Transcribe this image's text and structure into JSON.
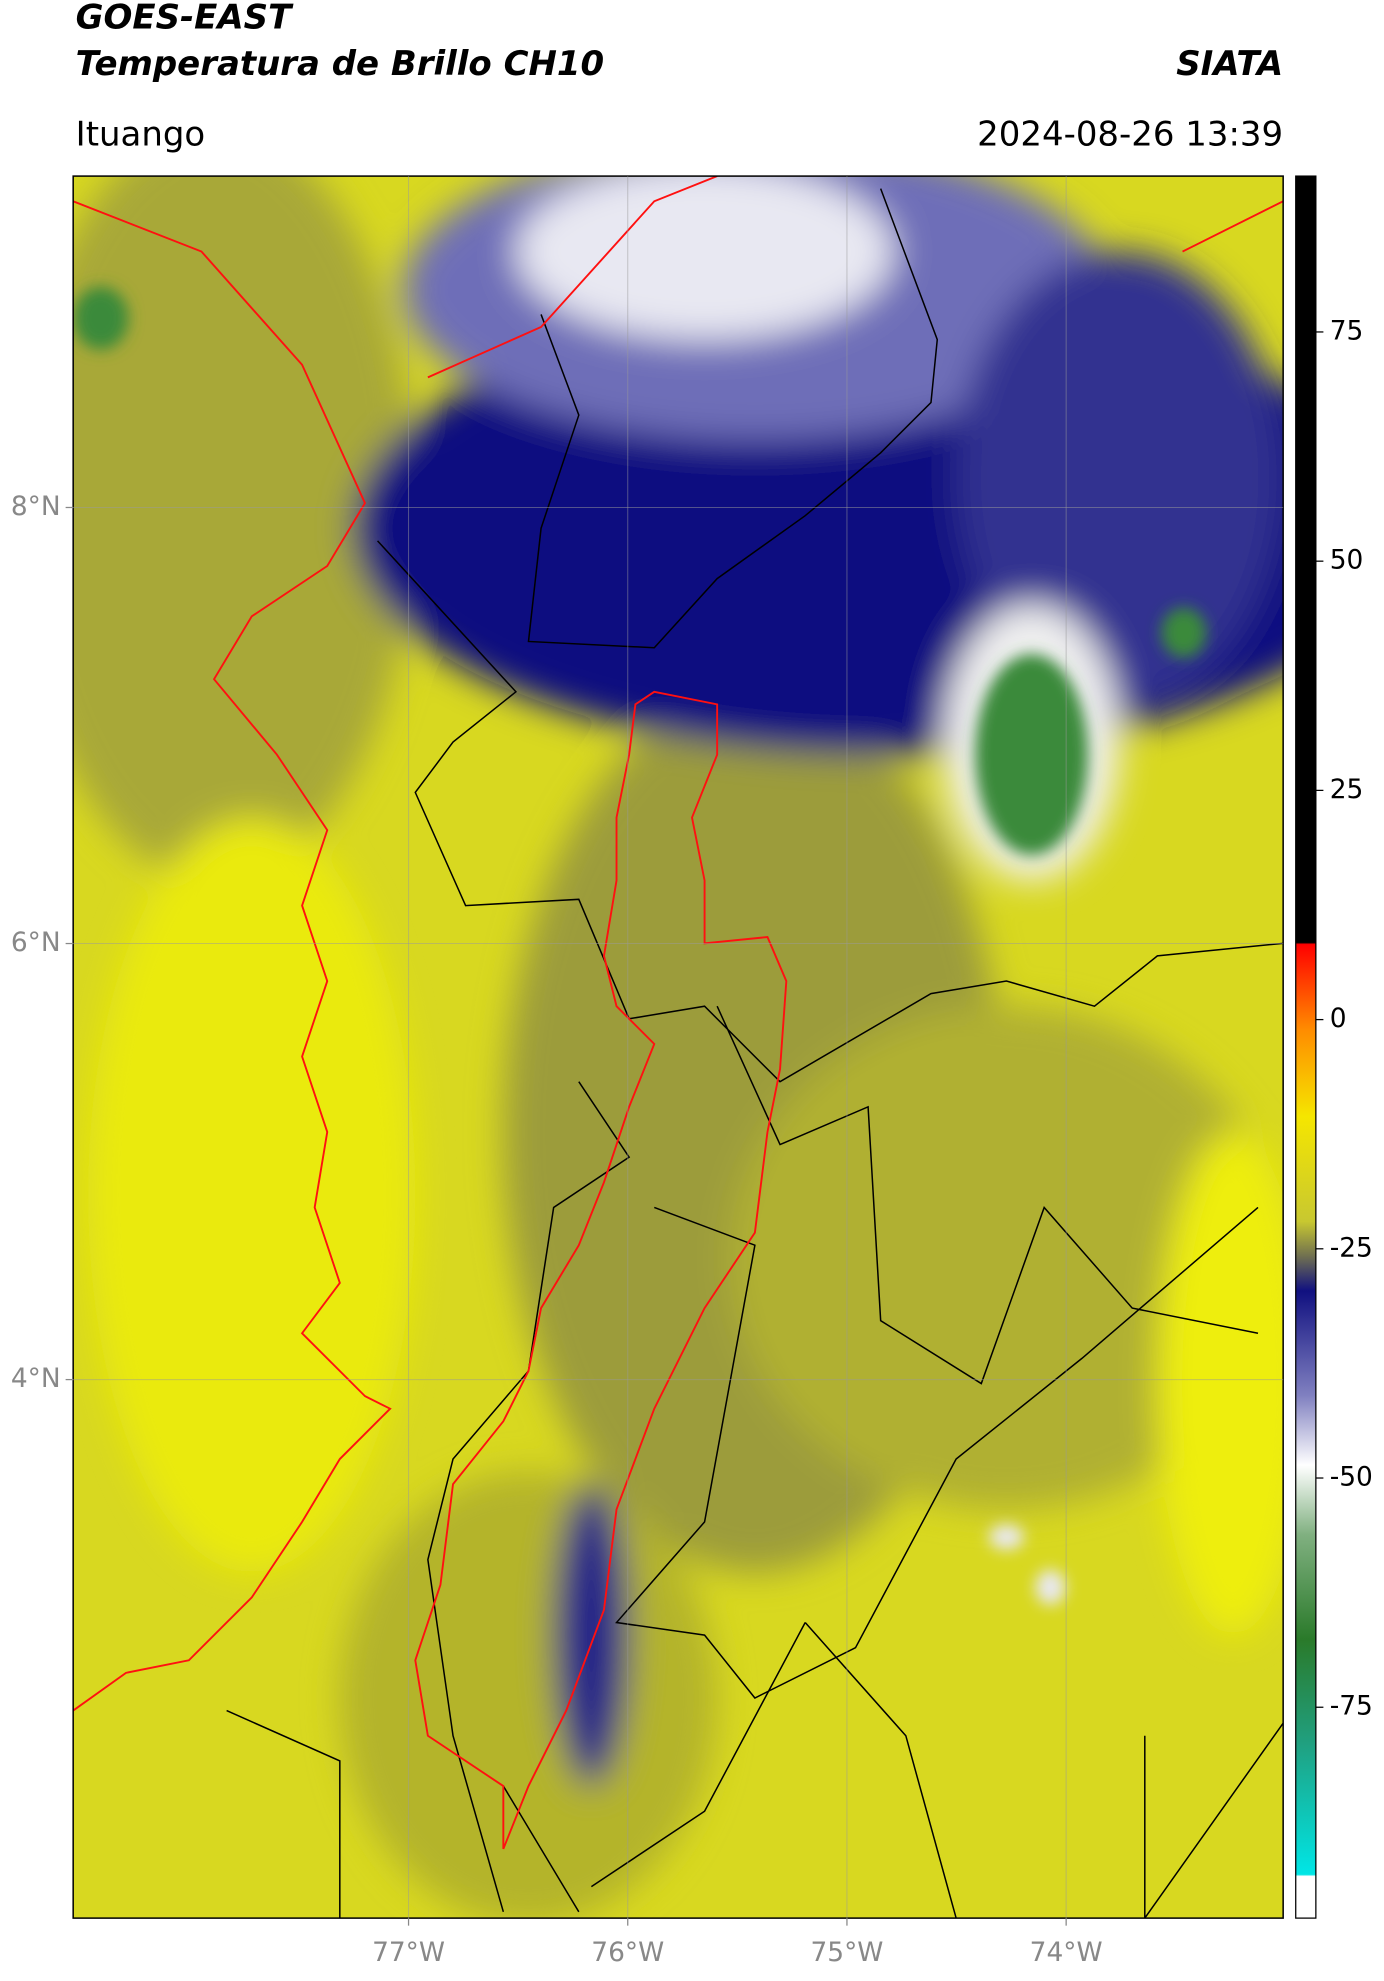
{
  "header": {
    "title": "GOES-EAST",
    "subtitle": "Temperatura de Brillo CH10",
    "agency": "SIATA",
    "location": "Ituango",
    "timestamp": "2024-08-26 13:39"
  },
  "map": {
    "xlim": [
      -78.53,
      -73.01
    ],
    "ylim": [
      1.53,
      9.52
    ],
    "xticks": [
      {
        "value": -77,
        "label": "77°W"
      },
      {
        "value": -76,
        "label": "76°W"
      },
      {
        "value": -75,
        "label": "75°W"
      },
      {
        "value": -74,
        "label": "74°W"
      }
    ],
    "yticks": [
      {
        "value": 8,
        "label": "8°N"
      },
      {
        "value": 6,
        "label": "6°N"
      },
      {
        "value": 4,
        "label": "4°N"
      }
    ],
    "grid": true
  },
  "colorbar": {
    "lim": [
      -98,
      92
    ],
    "ticks": [
      75,
      50,
      25,
      0,
      -25,
      -50,
      -75
    ]
  }
}
